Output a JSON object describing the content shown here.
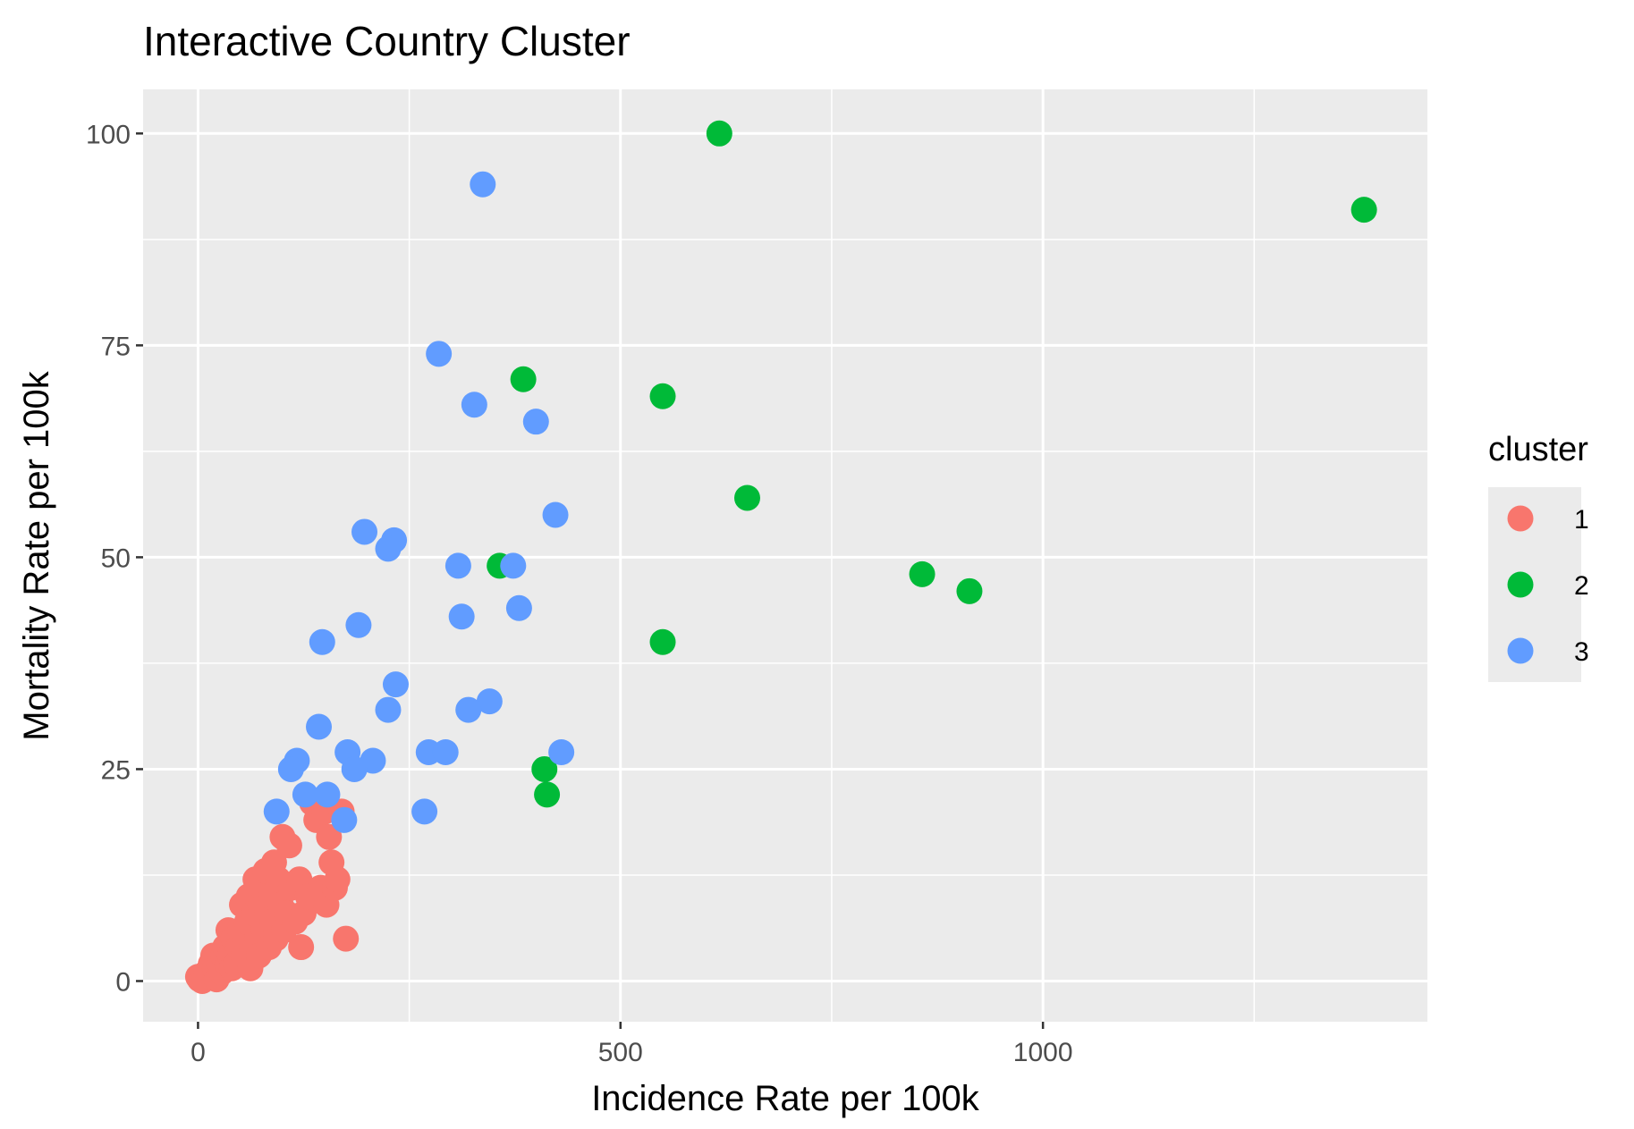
{
  "chart_data": {
    "type": "scatter",
    "title": "Interactive Country Cluster",
    "xlabel": "Incidence Rate per 100k",
    "ylabel": "Mortality Rate per 100k",
    "xlim": [
      -65,
      1455
    ],
    "ylim": [
      -4.8,
      105.2
    ],
    "x_ticks": [
      0,
      500,
      1000
    ],
    "x_tick_labels": [
      "0",
      "500",
      "1000"
    ],
    "x_minor_ticks": [
      250,
      750,
      1250
    ],
    "y_ticks": [
      0,
      25,
      50,
      75,
      100
    ],
    "y_tick_labels": [
      "0",
      "25",
      "50",
      "75",
      "100"
    ],
    "y_minor_ticks": [
      12.5,
      37.5,
      62.5,
      87.5
    ],
    "grid": true,
    "legend": {
      "title": "cluster",
      "placement": "right"
    },
    "series": [
      {
        "name": "1",
        "color": "#F8766D",
        "points": [
          [
            0,
            0.5
          ],
          [
            2,
            0.2
          ],
          [
            5,
            0
          ],
          [
            8,
            0.3
          ],
          [
            10,
            1
          ],
          [
            12,
            0.5
          ],
          [
            15,
            2
          ],
          [
            18,
            3
          ],
          [
            20,
            1.5
          ],
          [
            22,
            0.2
          ],
          [
            25,
            2
          ],
          [
            28,
            1
          ],
          [
            30,
            3
          ],
          [
            32,
            4
          ],
          [
            35,
            2
          ],
          [
            36,
            6
          ],
          [
            38,
            3
          ],
          [
            40,
            1.5
          ],
          [
            42,
            5
          ],
          [
            44,
            3
          ],
          [
            45,
            2
          ],
          [
            48,
            4
          ],
          [
            50,
            6
          ],
          [
            52,
            9
          ],
          [
            54,
            3
          ],
          [
            56,
            5
          ],
          [
            58,
            7
          ],
          [
            60,
            10
          ],
          [
            62,
            1.5
          ],
          [
            64,
            4
          ],
          [
            66,
            8
          ],
          [
            68,
            12
          ],
          [
            70,
            5
          ],
          [
            72,
            3
          ],
          [
            74,
            9
          ],
          [
            76,
            11
          ],
          [
            78,
            6
          ],
          [
            80,
            13
          ],
          [
            82,
            8
          ],
          [
            84,
            4
          ],
          [
            86,
            10
          ],
          [
            88,
            7
          ],
          [
            90,
            14
          ],
          [
            92,
            5
          ],
          [
            95,
            12
          ],
          [
            98,
            9
          ],
          [
            100,
            17
          ],
          [
            102,
            6
          ],
          [
            105,
            8
          ],
          [
            108,
            16
          ],
          [
            110,
            11
          ],
          [
            115,
            7
          ],
          [
            120,
            12
          ],
          [
            122,
            4
          ],
          [
            125,
            8
          ],
          [
            130,
            10
          ],
          [
            135,
            21
          ],
          [
            140,
            19
          ],
          [
            145,
            11
          ],
          [
            150,
            20
          ],
          [
            152,
            9
          ],
          [
            155,
            17
          ],
          [
            158,
            14
          ],
          [
            162,
            11
          ],
          [
            165,
            12
          ],
          [
            170,
            20
          ],
          [
            175,
            5
          ]
        ]
      },
      {
        "name": "2",
        "color": "#00BA38",
        "points": [
          [
            617,
            100
          ],
          [
            1380,
            91
          ],
          [
            385,
            71
          ],
          [
            550,
            69
          ],
          [
            650,
            57
          ],
          [
            357,
            49
          ],
          [
            857,
            48
          ],
          [
            913,
            46
          ],
          [
            550,
            40
          ],
          [
            410,
            25
          ],
          [
            413,
            22
          ]
        ]
      },
      {
        "name": "3",
        "color": "#619CFF",
        "points": [
          [
            337,
            94
          ],
          [
            285,
            74
          ],
          [
            327,
            68
          ],
          [
            400,
            66
          ],
          [
            423,
            55
          ],
          [
            197,
            53
          ],
          [
            232,
            52
          ],
          [
            225,
            51
          ],
          [
            308,
            49
          ],
          [
            373,
            49
          ],
          [
            380,
            44
          ],
          [
            312,
            43
          ],
          [
            190,
            42
          ],
          [
            147,
            40
          ],
          [
            234,
            35
          ],
          [
            345,
            33
          ],
          [
            320,
            32
          ],
          [
            225,
            32
          ],
          [
            143,
            30
          ],
          [
            177,
            27
          ],
          [
            273,
            27
          ],
          [
            293,
            27
          ],
          [
            430,
            27
          ],
          [
            117,
            26
          ],
          [
            207,
            26
          ],
          [
            110,
            25
          ],
          [
            185,
            25
          ],
          [
            127,
            22
          ],
          [
            153,
            22
          ],
          [
            93,
            20
          ],
          [
            268,
            20
          ],
          [
            173,
            19
          ]
        ]
      }
    ]
  }
}
